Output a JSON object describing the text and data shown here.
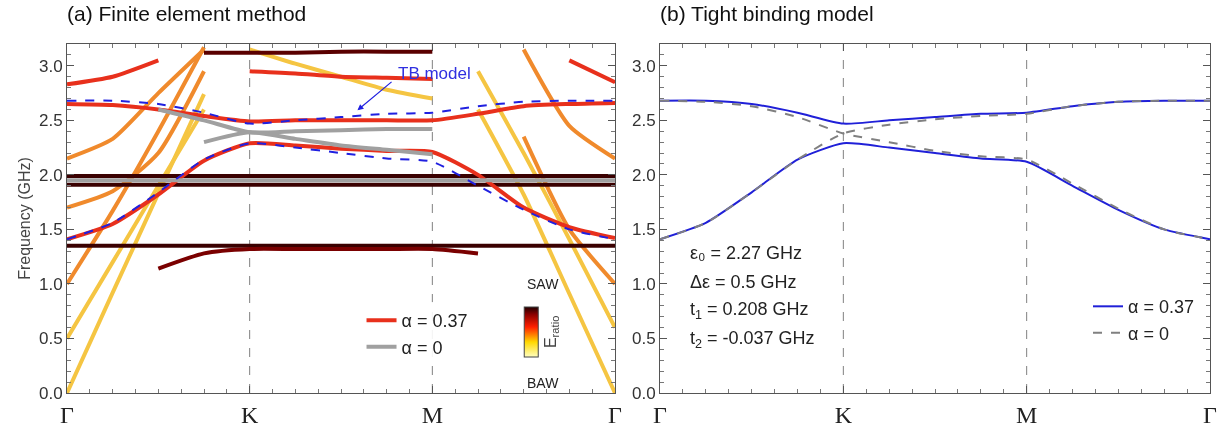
{
  "chart_data": [
    {
      "type": "line",
      "title": "(a) Finite element method",
      "ylabel": "Frequency (GHz)",
      "clabel": "E$_{ratio}$",
      "categories": [
        "Γ",
        null,
        null,
        null,
        "K",
        null,
        null,
        null,
        "M",
        null,
        null,
        null,
        "Γ"
      ],
      "ylim": [
        0,
        3.2
      ],
      "yticks": [
        {
          "value": 0,
          "label": "0.0"
        },
        0.5,
        {
          "value": 1,
          "label": "1.0"
        },
        1.5,
        {
          "value": 2,
          "label": "2.0"
        },
        2.5,
        {
          "value": 3,
          "label": "3.0"
        }
      ],
      "grid": false,
      "legend": "bottom right",
      "marker": "none",
      "ref_lines": [
        {
          "axis": "x",
          "value": "K",
          "line_style": "dashed",
          "color": "#808080"
        },
        {
          "axis": "x",
          "value": "M",
          "line_style": "dashed",
          "color": "#808080"
        }
      ],
      "annotations": [
        "TB model",
        "SAW",
        "BAW"
      ],
      "series": [
        {
          "color": "#f5c542",
          "values": [
            0,
            0.92,
            1.83,
            2.74,
            null,
            null,
            null,
            null,
            null,
            null,
            null,
            null,
            null
          ]
        },
        {
          "color": "#f5c542",
          "values": [
            0.5,
            1.2,
            1.9,
            2.6,
            null,
            null,
            null,
            null,
            null,
            null,
            null,
            null,
            null
          ]
        },
        {
          "color": "#f08a2c",
          "values": [
            1.0,
            1.67,
            2.4,
            3.17,
            null,
            null,
            null,
            null,
            null,
            null,
            null,
            null,
            null
          ]
        },
        {
          "color": "#f08a2c",
          "values": [
            1.7,
            1.85,
            2.2,
            2.95,
            null,
            null,
            null,
            null,
            null,
            null,
            null,
            null,
            null
          ]
        },
        {
          "color": "#f08a2c",
          "values": [
            2.15,
            2.33,
            2.75,
            3.15,
            null,
            null,
            null,
            null,
            null,
            null,
            null,
            null,
            null
          ]
        },
        {
          "color": "#f5c542",
          "values": [
            null,
            null,
            null,
            null,
            null,
            null,
            null,
            null,
            null,
            2.6,
            1.82,
            0.91,
            0
          ]
        },
        {
          "color": "#f5c542",
          "values": [
            null,
            null,
            null,
            null,
            null,
            null,
            null,
            null,
            null,
            2.95,
            2.2,
            1.41,
            0.6
          ]
        },
        {
          "color": "#f08a2c",
          "values": [
            null,
            null,
            null,
            null,
            null,
            null,
            null,
            null,
            null,
            null,
            2.35,
            1.5,
            1.0
          ]
        },
        {
          "color": "#f08a2c",
          "values": [
            null,
            null,
            null,
            null,
            null,
            null,
            null,
            null,
            null,
            null,
            3.15,
            2.45,
            2.15
          ]
        },
        {
          "color": "#e8301c",
          "values": [
            null,
            null,
            null,
            null,
            null,
            null,
            null,
            null,
            null,
            null,
            null,
            3.05,
            2.85
          ]
        },
        {
          "color": "#f5c542",
          "values": [
            null,
            null,
            null,
            null,
            3.15,
            3.02,
            2.9,
            2.78,
            2.7,
            null,
            null,
            null,
            null
          ]
        },
        {
          "color": "#e8301c",
          "values": [
            2.83,
            2.9,
            3.05,
            null,
            null,
            null,
            null,
            null,
            null,
            null,
            null,
            null,
            null
          ]
        },
        {
          "color": "#5a0000",
          "values": [
            null,
            null,
            null,
            3.12,
            3.12,
            3.12,
            3.13,
            3.13,
            3.13,
            null,
            null,
            null,
            null
          ]
        },
        {
          "color": "#e8301c",
          "values": [
            null,
            null,
            null,
            null,
            2.95,
            2.93,
            2.9,
            2.89,
            2.88,
            null,
            null,
            null,
            null
          ]
        },
        {
          "color": "#3a0000",
          "values": [
            1.35,
            1.35,
            1.35,
            1.35,
            1.35,
            1.35,
            1.35,
            1.35,
            1.35,
            1.35,
            1.35,
            1.35,
            1.35
          ]
        },
        {
          "color": "#3a0000",
          "values": [
            1.99,
            1.99,
            1.99,
            1.99,
            1.99,
            1.99,
            1.99,
            1.99,
            1.99,
            1.99,
            1.99,
            1.99,
            1.99
          ]
        },
        {
          "color": "#3a0000",
          "values": [
            1.91,
            1.91,
            1.91,
            1.91,
            1.91,
            1.91,
            1.91,
            1.91,
            1.91,
            1.91,
            1.91,
            1.91,
            1.91
          ]
        },
        {
          "color": "#7a0000",
          "values": [
            null,
            null,
            1.14,
            1.28,
            1.32,
            1.32,
            1.32,
            1.32,
            1.32,
            1.28,
            null,
            null,
            null
          ]
        },
        {
          "color": "#e8301c",
          "values": [
            1.41,
            1.55,
            1.82,
            2.13,
            2.29,
            2.27,
            2.24,
            2.22,
            2.21,
            2.0,
            1.7,
            1.52,
            1.42
          ]
        },
        {
          "name": "α = 0.37",
          "color": "#e8301c",
          "values": [
            2.65,
            2.64,
            2.6,
            2.54,
            2.49,
            2.5,
            2.5,
            2.5,
            2.5,
            2.56,
            2.63,
            2.65,
            2.66
          ]
        },
        {
          "name": "α = 0",
          "color": "#a0a0a0",
          "values": [
            null,
            null,
            2.6,
            2.5,
            2.39,
            2.4,
            2.41,
            2.42,
            2.42,
            null,
            null,
            null,
            null
          ]
        },
        {
          "color": "#a0a0a0",
          "values": [
            null,
            null,
            null,
            2.3,
            2.39,
            2.33,
            2.27,
            2.23,
            2.19,
            null,
            null,
            null,
            null
          ]
        },
        {
          "color": "#a0a0a0",
          "values": [
            1.95,
            1.95,
            1.95,
            1.95,
            1.95,
            1.95,
            1.95,
            1.95,
            1.95,
            1.95,
            1.95,
            1.95,
            1.95
          ]
        },
        {
          "color": "#2020e0",
          "line_style": "dashed",
          "values": [
            1.41,
            1.56,
            1.84,
            2.14,
            2.29,
            2.25,
            2.2,
            2.15,
            2.12,
            1.9,
            1.68,
            1.5,
            1.41
          ]
        },
        {
          "color": "#2020e0",
          "line_style": "dashed",
          "values": [
            2.68,
            2.68,
            2.65,
            2.57,
            2.47,
            2.5,
            2.53,
            2.56,
            2.57,
            2.63,
            2.67,
            2.68,
            2.68
          ]
        }
      ]
    },
    {
      "type": "line",
      "title": "(b) Tight binding model",
      "categories": [
        "Γ",
        null,
        null,
        null,
        "K",
        null,
        null,
        null,
        "M",
        null,
        null,
        null,
        "Γ"
      ],
      "ylim": [
        0,
        3.2
      ],
      "yticks": [
        {
          "value": 0,
          "label": "0.0"
        },
        0.5,
        {
          "value": 1,
          "label": "1.0"
        },
        1.5,
        {
          "value": 2,
          "label": "2.0"
        },
        2.5,
        {
          "value": 3,
          "label": "3.0"
        }
      ],
      "grid": false,
      "legend": "bottom right",
      "marker": "none",
      "ref_lines": [
        {
          "axis": "x",
          "value": "K",
          "line_style": "dashed",
          "color": "#808080"
        },
        {
          "axis": "x",
          "value": "M",
          "line_style": "dashed",
          "color": "#808080"
        }
      ],
      "annotations": [
        "ε₀ = 2.27 GHz",
        "Δε = 0.5 GHz",
        "t$_{1}$ = 0.208 GHz",
        "t$_{2}$ = -0.037 GHz"
      ],
      "series": [
        {
          "name": "α = 0.37",
          "color": "#2020d8",
          "line_style": "solid",
          "values": [
            1.41,
            1.56,
            1.84,
            2.14,
            2.29,
            2.25,
            2.2,
            2.15,
            2.12,
            1.9,
            1.68,
            1.5,
            1.41
          ]
        },
        {
          "color": "#2020d8",
          "line_style": "solid",
          "values": [
            2.68,
            2.68,
            2.65,
            2.57,
            2.47,
            2.5,
            2.53,
            2.56,
            2.57,
            2.63,
            2.67,
            2.68,
            2.68
          ]
        },
        {
          "name": "α = 0",
          "color": "#808080",
          "line_style": "dashed",
          "values": [
            2.68,
            2.67,
            2.63,
            2.53,
            2.38,
            2.3,
            2.22,
            2.17,
            2.14,
            1.92,
            1.69,
            1.5,
            1.41
          ]
        },
        {
          "color": "#808080",
          "line_style": "dashed",
          "values": [
            1.41,
            1.56,
            1.84,
            2.14,
            2.38,
            2.46,
            2.51,
            2.54,
            2.56,
            2.63,
            2.67,
            2.68,
            2.68
          ]
        }
      ]
    }
  ]
}
